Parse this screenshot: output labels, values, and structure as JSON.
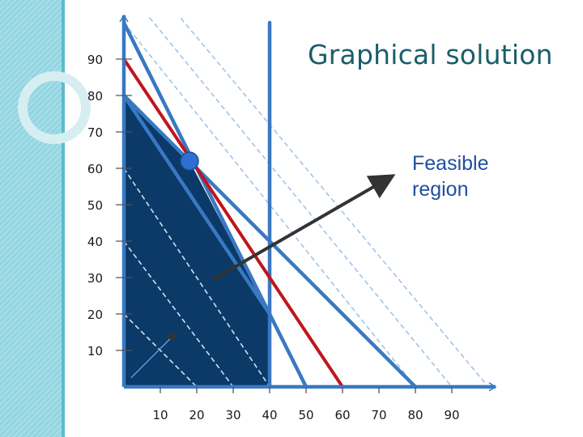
{
  "slide": {
    "title": "Graphical solution",
    "annotation": "Feasible\nregion"
  },
  "chart_data": {
    "type": "line",
    "x_ticks": [
      10,
      20,
      30,
      40,
      50,
      60,
      70,
      80,
      90
    ],
    "y_ticks": [
      10,
      20,
      30,
      40,
      50,
      60,
      70,
      80,
      90
    ],
    "xlim": [
      0,
      100
    ],
    "ylim": [
      0,
      100
    ],
    "constraint_lines": [
      {
        "name": "",
        "from": [
          0,
          80
        ],
        "to": [
          40,
          20
        ],
        "color": "#3a78c2"
      },
      {
        "name": "",
        "from": [
          0,
          100
        ],
        "to": [
          50,
          0
        ],
        "color": "#3a78c2"
      },
      {
        "name": "",
        "from": [
          0,
          80
        ],
        "to": [
          80,
          0
        ],
        "color": "#3a78c2"
      },
      {
        "name": "",
        "from": [
          40,
          0
        ],
        "to": [
          40,
          100
        ],
        "color": "#3a78c2"
      }
    ],
    "objective_line": {
      "from": [
        0,
        90
      ],
      "to": [
        60,
        0
      ],
      "color": "#c0151b"
    },
    "feasible_region": {
      "vertices": [
        [
          0,
          0
        ],
        [
          0,
          80
        ],
        [
          18,
          62
        ],
        [
          40,
          20
        ],
        [
          40,
          0
        ]
      ],
      "color": "#0b3a68"
    },
    "optimal_point": [
      18,
      62
    ],
    "iso_lines": [
      {
        "from": [
          0,
          110
        ],
        "to": [
          90,
          0
        ]
      },
      {
        "from": [
          0,
          120
        ],
        "to": [
          100,
          0
        ]
      },
      {
        "from": [
          0,
          100
        ],
        "to": [
          80,
          0
        ]
      },
      {
        "from": [
          0,
          60
        ],
        "to": [
          40,
          0
        ]
      },
      {
        "from": [
          0,
          40
        ],
        "to": [
          30,
          0
        ]
      },
      {
        "from": [
          0,
          20
        ],
        "to": [
          20,
          0
        ]
      }
    ],
    "colors": {
      "axis": "#3a78c2",
      "iso_outside": "#9fc4ea",
      "iso_inside": "#d0dcea",
      "arrow": "#333333",
      "point": "#2e6fd0"
    }
  }
}
